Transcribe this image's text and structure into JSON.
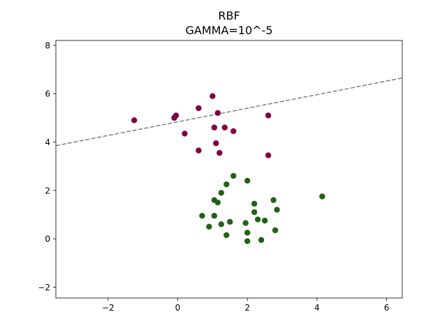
{
  "chart_data": {
    "type": "scatter",
    "title": "RBF",
    "subtitle": "GAMMA=10^-5",
    "xlabel": "",
    "ylabel": "",
    "xlim": [
      -3.5,
      6.45
    ],
    "ylim": [
      -2.45,
      8.2
    ],
    "xticks": [
      -2,
      0,
      2,
      4,
      6
    ],
    "yticks": [
      -2,
      0,
      2,
      4,
      6,
      8
    ],
    "xtick_labels": [
      "−2",
      "0",
      "2",
      "4",
      "6"
    ],
    "ytick_labels": [
      "−2",
      "0",
      "2",
      "4",
      "6",
      "8"
    ],
    "grid": false,
    "legend": "none",
    "series": [
      {
        "color": "#800040",
        "points": [
          [
            -1.25,
            4.9
          ],
          [
            -0.1,
            5.0
          ],
          [
            -0.05,
            5.1
          ],
          [
            0.6,
            5.4
          ],
          [
            0.2,
            4.35
          ],
          [
            0.6,
            3.65
          ],
          [
            1.0,
            5.9
          ],
          [
            1.15,
            5.2
          ],
          [
            1.05,
            4.6
          ],
          [
            1.1,
            3.95
          ],
          [
            1.2,
            3.55
          ],
          [
            1.35,
            4.6
          ],
          [
            1.6,
            4.45
          ],
          [
            2.6,
            5.1
          ],
          [
            2.6,
            3.45
          ]
        ]
      },
      {
        "color": "#236117",
        "points": [
          [
            1.6,
            2.6
          ],
          [
            2.0,
            2.4
          ],
          [
            1.4,
            2.25
          ],
          [
            1.25,
            1.9
          ],
          [
            1.05,
            1.6
          ],
          [
            1.15,
            1.5
          ],
          [
            0.7,
            0.95
          ],
          [
            1.05,
            0.95
          ],
          [
            0.9,
            0.5
          ],
          [
            1.25,
            0.6
          ],
          [
            1.5,
            0.7
          ],
          [
            1.4,
            0.15
          ],
          [
            1.95,
            0.65
          ],
          [
            2.0,
            0.25
          ],
          [
            2.0,
            -0.1
          ],
          [
            2.2,
            1.45
          ],
          [
            2.2,
            1.1
          ],
          [
            2.3,
            0.8
          ],
          [
            2.5,
            0.75
          ],
          [
            2.4,
            -0.05
          ],
          [
            2.75,
            1.6
          ],
          [
            2.85,
            1.2
          ],
          [
            2.8,
            0.35
          ],
          [
            4.15,
            1.75
          ]
        ]
      }
    ],
    "decision_line": {
      "color": "#808080",
      "style": "dashed",
      "points": [
        [
          -3.5,
          3.85
        ],
        [
          6.45,
          6.65
        ]
      ]
    }
  }
}
